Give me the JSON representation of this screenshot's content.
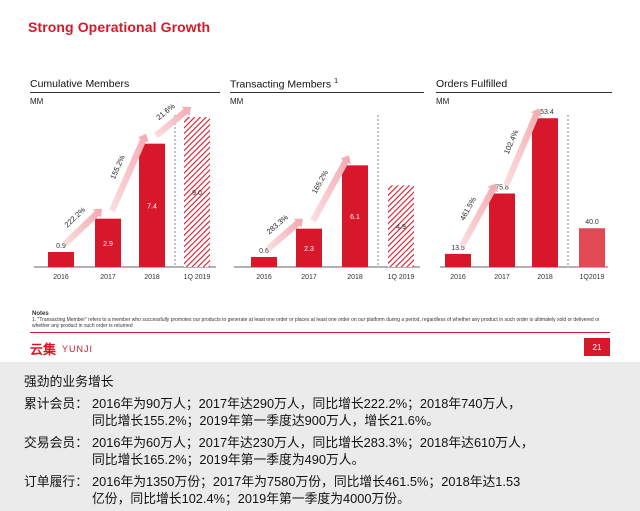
{
  "slide": {
    "title": "Strong Operational Growth",
    "notes_heading": "Notes",
    "notes_text": "1. \"Transacting Member\" refers to a member who successfully promotes our products to generate at least one order or places at least one order on our platform during a period, regardless of whether any product in such order is ultimately sold or delivered or whether any product in such order is returned",
    "logo_cn": "云集",
    "logo_en": "YUNJI",
    "page_number": "21"
  },
  "colors": {
    "accent": "#d7182a",
    "light_arrow": "#f6c4c8",
    "caption_bg": "#ebebeb"
  },
  "chart_data": [
    {
      "type": "bar",
      "title": "Cumulative Members",
      "ylabel": "MM",
      "categories": [
        "2016",
        "2017",
        "2018",
        "1Q 2019"
      ],
      "values": [
        0.9,
        2.9,
        7.4,
        9.0
      ],
      "value_labels": [
        "0.9",
        "2.9",
        "7.4",
        "9.0"
      ],
      "hatched_last": true,
      "growth_labels": [
        "222.2%",
        "155.2%",
        "21.6%"
      ],
      "ylim": [
        0,
        9.6
      ]
    },
    {
      "type": "bar",
      "title": "Transacting Members",
      "title_sup": "1",
      "ylabel": "MM",
      "categories": [
        "2016",
        "2017",
        "2018",
        "1Q 2019"
      ],
      "values": [
        0.6,
        2.3,
        6.1,
        4.9
      ],
      "value_labels": [
        "0.6",
        "2.3",
        "6.1",
        "4.9"
      ],
      "hatched_last": true,
      "growth_labels": [
        "283.3%",
        "165.2%"
      ],
      "ylim": [
        0,
        9.6
      ]
    },
    {
      "type": "bar",
      "title": "Orders Fulfilled",
      "ylabel": "MM",
      "categories": [
        "2016",
        "2017",
        "2018",
        "1Q2019"
      ],
      "values": [
        13.5,
        75.8,
        153.4,
        40.0
      ],
      "value_labels": [
        "13.5",
        "75.8",
        "153.4",
        "40.0"
      ],
      "hatched_last": false,
      "growth_labels": [
        "461.5%",
        "102.4%"
      ],
      "ylim": [
        0,
        165
      ]
    }
  ],
  "caption": {
    "heading": "强劲的业务增长",
    "items": [
      {
        "label": "累计会员：",
        "line1": "2016年为90万人；2017年达290万人，同比增长222.2%；2018年740万人，",
        "line2": "同比增长155.2%；2019年第一季度达900万人，增长21.6%。"
      },
      {
        "label": "交易会员：",
        "line1": "2016年为60万人；2017年达230万人，同比增长283.3%；2018年达610万人，",
        "line2": "同比增长165.2%；2019年第一季度为490万人。"
      },
      {
        "label": "订单履行：",
        "line1": "2016年为1350万份；2017年为7580万份，同比增长461.5%；2018年达1.53",
        "line2": "亿份，同比增长102.4%；2019年第一季度为4000万份。"
      }
    ]
  }
}
